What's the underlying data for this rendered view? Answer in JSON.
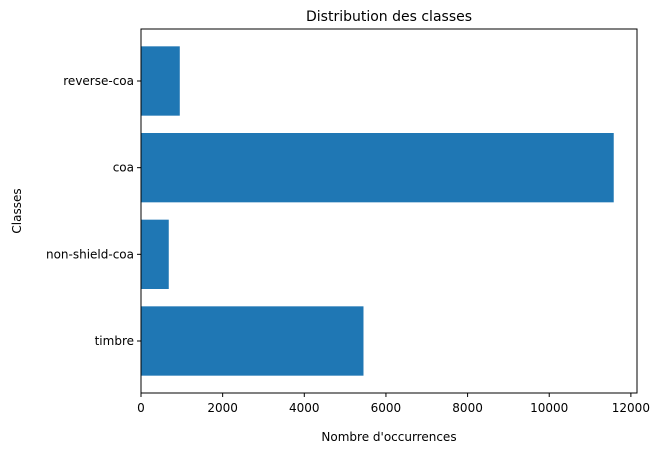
{
  "chart_data": {
    "type": "bar",
    "orientation": "horizontal",
    "title": "Distribution des classes",
    "xlabel": "Nombre d'occurrences",
    "ylabel": "Classes",
    "categories": [
      "timbre",
      "non-shield-coa",
      "coa",
      "reverse-coa"
    ],
    "values": [
      5450,
      680,
      11580,
      950
    ],
    "xlim": [
      0,
      12150
    ],
    "xticks": [
      0,
      2000,
      4000,
      6000,
      8000,
      10000,
      12000
    ],
    "xtick_labels": [
      "0",
      "2000",
      "4000",
      "6000",
      "8000",
      "10000",
      "12000"
    ],
    "bar_color": "#1f77b4",
    "grid": false
  }
}
